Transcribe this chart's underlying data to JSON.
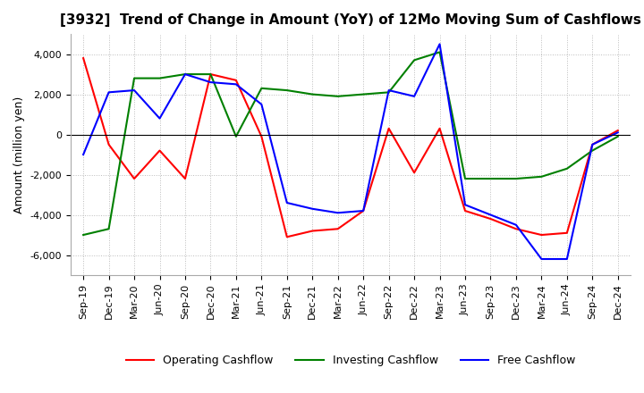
{
  "title": "[3932]  Trend of Change in Amount (YoY) of 12Mo Moving Sum of Cashflows",
  "ylabel": "Amount (million yen)",
  "x_labels": [
    "Sep-19",
    "Dec-19",
    "Mar-20",
    "Jun-20",
    "Sep-20",
    "Dec-20",
    "Mar-21",
    "Jun-21",
    "Sep-21",
    "Dec-21",
    "Mar-22",
    "Jun-22",
    "Sep-22",
    "Dec-22",
    "Mar-23",
    "Jun-23",
    "Sep-23",
    "Dec-23",
    "Mar-24",
    "Jun-24",
    "Sep-24",
    "Dec-24"
  ],
  "operating": [
    3800,
    -500,
    -2200,
    -800,
    -2200,
    3000,
    2700,
    -100,
    -5100,
    -4800,
    -4700,
    -3800,
    300,
    -1900,
    300,
    -3800,
    -4200,
    -4700,
    -5000,
    -4900,
    -500,
    200
  ],
  "investing": [
    -5000,
    -4700,
    2800,
    2800,
    3000,
    3000,
    -100,
    2300,
    2200,
    2000,
    1900,
    2000,
    2100,
    3700,
    4100,
    -2200,
    -2200,
    -2200,
    -2100,
    -1700,
    -800,
    -100
  ],
  "free": [
    -1000,
    2100,
    2200,
    800,
    3000,
    2600,
    2500,
    1500,
    -3400,
    -3700,
    -3900,
    -3800,
    2200,
    1900,
    4500,
    -3500,
    -4000,
    -4500,
    -6200,
    -6200,
    -500,
    100
  ],
  "ylim": [
    -7000,
    5000
  ],
  "yticks": [
    -6000,
    -4000,
    -2000,
    0,
    2000,
    4000
  ],
  "colors": {
    "operating": "#ff0000",
    "investing": "#008000",
    "free": "#0000ff"
  },
  "legend_labels": [
    "Operating Cashflow",
    "Investing Cashflow",
    "Free Cashflow"
  ],
  "grid_color": "#bbbbbb",
  "background_color": "#ffffff",
  "title_fontsize": 11,
  "axis_label_fontsize": 9,
  "tick_fontsize": 8
}
